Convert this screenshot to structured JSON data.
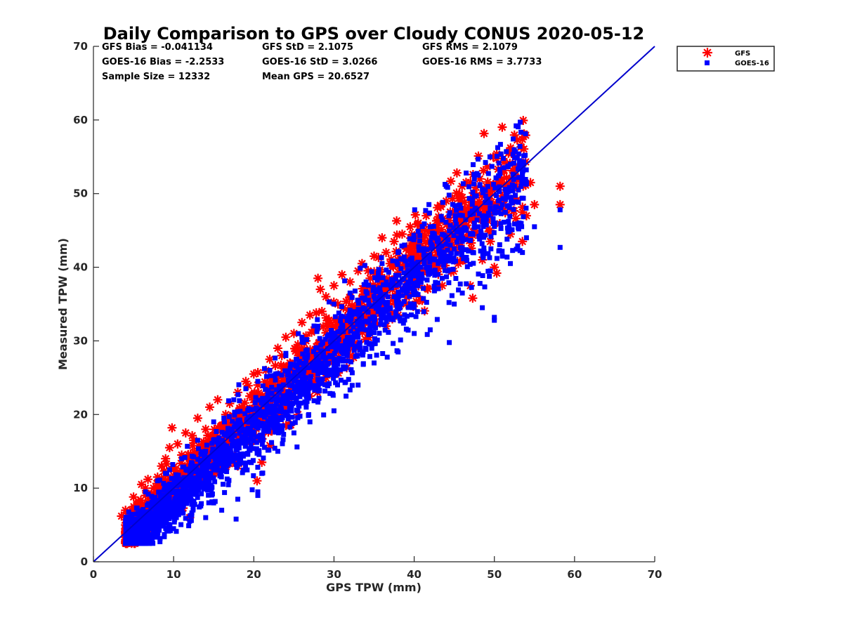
{
  "chart_data": {
    "type": "scatter",
    "title": "Daily Comparison to GPS over Cloudy CONUS 2020-05-12",
    "xlabel": "GPS TPW (mm)",
    "ylabel": "Measured TPW (mm)",
    "xlim": [
      0,
      70
    ],
    "ylim": [
      0,
      70
    ],
    "xticks": [
      "0",
      "10",
      "20",
      "30",
      "40",
      "50",
      "60",
      "70"
    ],
    "yticks": [
      "0",
      "10",
      "20",
      "30",
      "40",
      "50",
      "60",
      "70"
    ],
    "grid": false,
    "legend_position": "outside top-right",
    "stats": [
      [
        "GFS Bias = -0.041134",
        "GFS StD = 2.1075",
        "GFS RMS = 2.1079"
      ],
      [
        "GOES-16 Bias = -2.2533",
        "GOES-16 StD = 3.0266",
        "GOES-16 RMS = 3.7733"
      ],
      [
        "Sample Size = 12332",
        "Mean GPS = 20.6527"
      ]
    ],
    "reference_line": {
      "x": [
        0,
        70
      ],
      "y": [
        0,
        70
      ],
      "color": "#0000cc"
    },
    "series": [
      {
        "name": "GFS",
        "marker": "asterisk",
        "color": "#ff0000",
        "values": [
          [
            3.5,
            6.2
          ],
          [
            4.0,
            7.0
          ],
          [
            4.5,
            6.5
          ],
          [
            5.0,
            8.8
          ],
          [
            5.2,
            6.0
          ],
          [
            5.8,
            7.5
          ],
          [
            6.0,
            10.5
          ],
          [
            6.5,
            9.0
          ],
          [
            6.8,
            11.2
          ],
          [
            7.0,
            8.2
          ],
          [
            7.5,
            10.0
          ],
          [
            8.0,
            11.5
          ],
          [
            8.5,
            13.0
          ],
          [
            9.0,
            14.0
          ],
          [
            9.5,
            15.5
          ],
          [
            9.8,
            18.2
          ],
          [
            10.0,
            12.5
          ],
          [
            10.5,
            16.0
          ],
          [
            11.0,
            14.5
          ],
          [
            11.5,
            17.5
          ],
          [
            12.0,
            13.0
          ],
          [
            12.5,
            16.5
          ],
          [
            13.0,
            19.5
          ],
          [
            13.5,
            15.0
          ],
          [
            14.0,
            18.0
          ],
          [
            14.5,
            21.0
          ],
          [
            15.0,
            17.0
          ],
          [
            15.5,
            22.0
          ],
          [
            16.0,
            18.5
          ],
          [
            16.5,
            20.0
          ],
          [
            17.0,
            21.5
          ],
          [
            17.5,
            19.0
          ],
          [
            18.0,
            23.0
          ],
          [
            18.5,
            21.0
          ],
          [
            19.0,
            24.5
          ],
          [
            19.5,
            22.5
          ],
          [
            20.0,
            25.5
          ],
          [
            20.5,
            24.0
          ],
          [
            20.4,
            11.0
          ],
          [
            21.0,
            13.5
          ],
          [
            21.5,
            26.0
          ],
          [
            22.0,
            27.5
          ],
          [
            22.5,
            25.0
          ],
          [
            23.0,
            29.0
          ],
          [
            23.5,
            28.0
          ],
          [
            24.0,
            30.5
          ],
          [
            24.5,
            27.0
          ],
          [
            25.0,
            31.0
          ],
          [
            25.5,
            29.5
          ],
          [
            26.0,
            32.5
          ],
          [
            26.5,
            30.0
          ],
          [
            27.0,
            33.5
          ],
          [
            27.5,
            31.5
          ],
          [
            28.0,
            38.5
          ],
          [
            28.3,
            37.0
          ],
          [
            28.5,
            34.0
          ],
          [
            29.0,
            36.0
          ],
          [
            29.5,
            32.5
          ],
          [
            30.0,
            37.5
          ],
          [
            30.5,
            35.0
          ],
          [
            31.0,
            39.0
          ],
          [
            31.5,
            33.0
          ],
          [
            32.0,
            38.0
          ],
          [
            32.5,
            34.5
          ],
          [
            33.0,
            39.5
          ],
          [
            33.5,
            40.5
          ],
          [
            34.0,
            36.0
          ],
          [
            34.5,
            38.5
          ],
          [
            35.0,
            41.5
          ],
          [
            35.5,
            39.0
          ],
          [
            36.0,
            44.0
          ],
          [
            36.5,
            42.0
          ],
          [
            37.0,
            40.5
          ],
          [
            37.5,
            43.5
          ],
          [
            38.0,
            41.0
          ],
          [
            38.5,
            44.5
          ],
          [
            39.0,
            42.5
          ],
          [
            39.5,
            45.5
          ],
          [
            40.0,
            43.0
          ],
          [
            40.5,
            46.0
          ],
          [
            41.0,
            44.0
          ],
          [
            41.5,
            47.0
          ],
          [
            42.0,
            45.5
          ],
          [
            42.5,
            43.0
          ],
          [
            43.0,
            46.5
          ],
          [
            43.5,
            44.5
          ],
          [
            44.0,
            49.0
          ],
          [
            44.5,
            47.5
          ],
          [
            45.0,
            45.5
          ],
          [
            45.5,
            48.0
          ],
          [
            46.0,
            49.5
          ],
          [
            46.5,
            47.0
          ],
          [
            47.0,
            37.5
          ],
          [
            47.3,
            35.8
          ],
          [
            47.5,
            50.0
          ],
          [
            48.0,
            48.5
          ],
          [
            48.5,
            41.0
          ],
          [
            49.0,
            51.0
          ],
          [
            49.5,
            43.5
          ],
          [
            50.0,
            40.0
          ],
          [
            50.3,
            39.2
          ],
          [
            50.5,
            52.0
          ],
          [
            51.0,
            48.0
          ],
          [
            51.5,
            50.5
          ],
          [
            52.0,
            44.5
          ],
          [
            52.5,
            49.0
          ],
          [
            53.0,
            53.5
          ],
          [
            53.5,
            43.5
          ],
          [
            54.0,
            47.0
          ],
          [
            54.5,
            51.5
          ],
          [
            55.0,
            48.5
          ],
          [
            58.2,
            51.0
          ],
          [
            58.2,
            48.5
          ],
          [
            25.5,
            20.0
          ],
          [
            22.0,
            15.8
          ],
          [
            15.0,
            12.0
          ],
          [
            12.0,
            6.0
          ],
          [
            11.0,
            9.0
          ],
          [
            18.0,
            13.0
          ],
          [
            27.0,
            22.5
          ],
          [
            33.0,
            29.0
          ],
          [
            38.0,
            33.5
          ],
          [
            43.5,
            37.5
          ],
          [
            32.0,
            28.0
          ],
          [
            29.0,
            25.0
          ],
          [
            24.0,
            18.5
          ],
          [
            36.5,
            32.0
          ],
          [
            41.0,
            35.5
          ],
          [
            45.5,
            40.5
          ],
          [
            39.0,
            35.0
          ]
        ]
      },
      {
        "name": "GOES-16",
        "marker": "square",
        "color": "#0000ff",
        "values": [
          [
            4.5,
            3.0
          ],
          [
            5.0,
            2.5
          ],
          [
            5.5,
            4.0
          ],
          [
            6.0,
            3.5
          ],
          [
            6.5,
            5.0
          ],
          [
            7.0,
            4.5
          ],
          [
            7.5,
            6.0
          ],
          [
            8.0,
            5.5
          ],
          [
            8.5,
            7.0
          ],
          [
            9.0,
            6.5
          ],
          [
            9.5,
            8.0
          ],
          [
            10.0,
            7.5
          ],
          [
            10.5,
            9.0
          ],
          [
            11.0,
            8.5
          ],
          [
            11.5,
            10.0
          ],
          [
            12.0,
            9.5
          ],
          [
            12.5,
            11.0
          ],
          [
            13.0,
            10.5
          ],
          [
            13.5,
            12.0
          ],
          [
            14.0,
            11.5
          ],
          [
            14.5,
            13.0
          ],
          [
            15.0,
            12.5
          ],
          [
            15.5,
            14.0
          ],
          [
            16.0,
            13.5
          ],
          [
            16.5,
            15.0
          ],
          [
            17.0,
            14.5
          ],
          [
            17.5,
            16.0
          ],
          [
            18.0,
            15.5
          ],
          [
            18.5,
            17.0
          ],
          [
            19.0,
            16.5
          ],
          [
            19.5,
            18.0
          ],
          [
            20.0,
            17.5
          ],
          [
            20.5,
            19.0
          ],
          [
            21.0,
            18.5
          ],
          [
            21.5,
            20.0
          ],
          [
            22.0,
            19.5
          ],
          [
            22.5,
            21.0
          ],
          [
            23.0,
            20.5
          ],
          [
            23.5,
            22.0
          ],
          [
            24.0,
            21.5
          ],
          [
            24.5,
            23.0
          ],
          [
            25.0,
            22.5
          ],
          [
            25.5,
            24.0
          ],
          [
            26.0,
            23.5
          ],
          [
            26.5,
            25.0
          ],
          [
            27.0,
            24.5
          ],
          [
            27.5,
            26.0
          ],
          [
            28.0,
            25.5
          ],
          [
            28.5,
            27.0
          ],
          [
            29.0,
            26.5
          ],
          [
            29.5,
            28.0
          ],
          [
            30.0,
            27.5
          ],
          [
            30.5,
            29.0
          ],
          [
            31.0,
            28.5
          ],
          [
            31.5,
            30.0
          ],
          [
            32.0,
            29.5
          ],
          [
            32.5,
            31.0
          ],
          [
            33.0,
            30.5
          ],
          [
            33.5,
            32.0
          ],
          [
            34.0,
            31.5
          ],
          [
            34.5,
            33.0
          ],
          [
            35.0,
            32.5
          ],
          [
            35.5,
            34.0
          ],
          [
            36.0,
            33.5
          ],
          [
            36.5,
            35.0
          ],
          [
            37.0,
            34.5
          ],
          [
            37.5,
            36.0
          ],
          [
            38.0,
            35.5
          ],
          [
            38.5,
            37.0
          ],
          [
            39.0,
            36.5
          ],
          [
            39.5,
            38.0
          ],
          [
            40.0,
            37.5
          ],
          [
            40.5,
            39.0
          ],
          [
            41.0,
            38.5
          ],
          [
            41.5,
            40.0
          ],
          [
            42.0,
            39.5
          ],
          [
            42.5,
            41.0
          ],
          [
            43.0,
            40.5
          ],
          [
            43.5,
            42.0
          ],
          [
            44.0,
            41.5
          ],
          [
            44.5,
            43.0
          ],
          [
            45.0,
            42.5
          ],
          [
            45.5,
            44.0
          ],
          [
            46.0,
            43.5
          ],
          [
            46.5,
            45.0
          ],
          [
            47.0,
            44.5
          ],
          [
            47.5,
            46.0
          ],
          [
            48.0,
            45.5
          ],
          [
            48.5,
            47.0
          ],
          [
            49.0,
            46.5
          ],
          [
            49.5,
            48.0
          ],
          [
            50.0,
            47.5
          ],
          [
            50.5,
            49.0
          ],
          [
            51.0,
            48.5
          ],
          [
            51.5,
            50.0
          ],
          [
            52.0,
            49.5
          ],
          [
            52.5,
            51.0
          ],
          [
            53.0,
            50.5
          ],
          [
            53.5,
            52.0
          ],
          [
            54.0,
            51.5
          ],
          [
            51.5,
            55.7
          ],
          [
            52.0,
            54.0
          ],
          [
            48.0,
            52.5
          ],
          [
            47.5,
            52.0
          ],
          [
            44.0,
            51.0
          ],
          [
            50.0,
            32.8
          ],
          [
            50.0,
            33.2
          ],
          [
            48.5,
            34.5
          ],
          [
            46.0,
            36.5
          ],
          [
            43.5,
            38.5
          ],
          [
            58.2,
            47.8
          ],
          [
            58.2,
            42.7
          ],
          [
            55.0,
            45.5
          ],
          [
            54.0,
            44.0
          ],
          [
            53.5,
            42.0
          ],
          [
            52.0,
            40.5
          ],
          [
            51.0,
            41.5
          ],
          [
            49.5,
            39.5
          ],
          [
            45.0,
            35.0
          ],
          [
            42.0,
            31.5
          ],
          [
            40.0,
            31.0
          ],
          [
            38.0,
            28.5
          ],
          [
            35.0,
            27.0
          ],
          [
            33.0,
            24.0
          ],
          [
            31.5,
            22.5
          ],
          [
            30.0,
            20.5
          ],
          [
            27.0,
            19.0
          ],
          [
            25.0,
            17.5
          ],
          [
            23.0,
            15.0
          ],
          [
            21.0,
            12.0
          ],
          [
            20.5,
            9.5
          ],
          [
            20.5,
            9.0
          ],
          [
            18.0,
            8.5
          ],
          [
            16.0,
            7.0
          ],
          [
            14.0,
            6.0
          ],
          [
            12.0,
            5.5
          ],
          [
            10.0,
            4.5
          ],
          [
            8.0,
            3.5
          ],
          [
            6.0,
            2.8
          ],
          [
            5.5,
            3.0
          ],
          [
            22.0,
            26.0
          ],
          [
            20.5,
            24.5
          ],
          [
            19.0,
            23.5
          ],
          [
            17.5,
            22.0
          ],
          [
            15.0,
            19.0
          ],
          [
            13.0,
            16.5
          ],
          [
            11.0,
            14.0
          ],
          [
            9.5,
            12.5
          ],
          [
            8.0,
            11.0
          ],
          [
            6.5,
            9.5
          ],
          [
            24.0,
            28.0
          ],
          [
            26.0,
            30.5
          ],
          [
            28.0,
            32.0
          ],
          [
            30.0,
            35.0
          ],
          [
            32.0,
            36.5
          ],
          [
            34.0,
            38.0
          ],
          [
            36.0,
            40.5
          ],
          [
            38.0,
            42.0
          ],
          [
            40.0,
            44.0
          ],
          [
            42.0,
            45.5
          ]
        ]
      }
    ]
  }
}
